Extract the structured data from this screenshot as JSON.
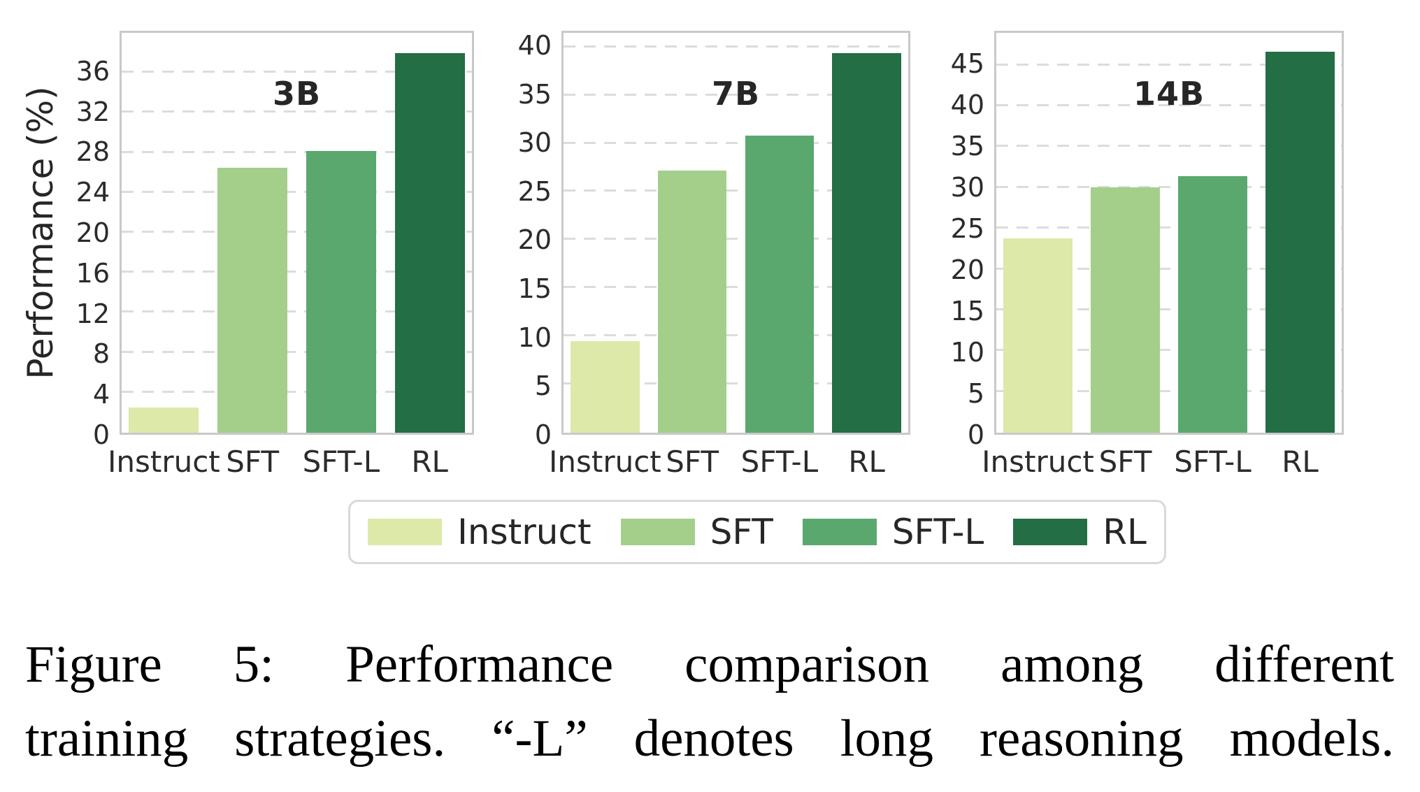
{
  "figure": {
    "ylabel": "Performance (%)"
  },
  "chart_data": [
    {
      "type": "bar",
      "title": "3B",
      "categories": [
        "Instruct",
        "SFT",
        "SFT-L",
        "RL"
      ],
      "values": [
        2.5,
        26.5,
        28.2,
        38.0
      ],
      "xlabel": "",
      "ylabel": "Performance (%)",
      "ylim": [
        0,
        40
      ],
      "yticks": [
        0,
        4,
        8,
        12,
        16,
        20,
        24,
        28,
        32,
        36
      ],
      "grid": true,
      "grid_style": "dashed-horizontal"
    },
    {
      "type": "bar",
      "title": "7B",
      "categories": [
        "Instruct",
        "SFT",
        "SFT-L",
        "RL"
      ],
      "values": [
        9.5,
        27.2,
        30.8,
        39.4
      ],
      "xlabel": "",
      "ylabel": "",
      "ylim": [
        0,
        41.5
      ],
      "yticks": [
        0,
        5,
        10,
        15,
        20,
        25,
        30,
        35,
        40
      ],
      "grid": true,
      "grid_style": "dashed-horizontal"
    },
    {
      "type": "bar",
      "title": "14B",
      "categories": [
        "Instruct",
        "SFT",
        "SFT-L",
        "RL"
      ],
      "values": [
        23.8,
        30.1,
        31.4,
        46.7
      ],
      "xlabel": "",
      "ylabel": "",
      "ylim": [
        0,
        49
      ],
      "yticks": [
        0,
        5,
        10,
        15,
        20,
        25,
        30,
        35,
        40,
        45
      ],
      "grid": true,
      "grid_style": "dashed-horizontal"
    }
  ],
  "series_colors": {
    "Instruct": "#dde9a9",
    "SFT": "#a3cf8a",
    "SFT-L": "#5aa86e",
    "RL": "#236e44"
  },
  "legend": {
    "position": "bottom-center",
    "items": [
      {
        "label": "Instruct",
        "color": "#dde9a9"
      },
      {
        "label": "SFT",
        "color": "#a3cf8a"
      },
      {
        "label": "SFT-L",
        "color": "#5aa86e"
      },
      {
        "label": "RL",
        "color": "#236e44"
      }
    ]
  },
  "caption": {
    "line1": "Figure 5: Performance comparison among different",
    "line2": "training strategies. “-L” denotes long reasoning models."
  }
}
